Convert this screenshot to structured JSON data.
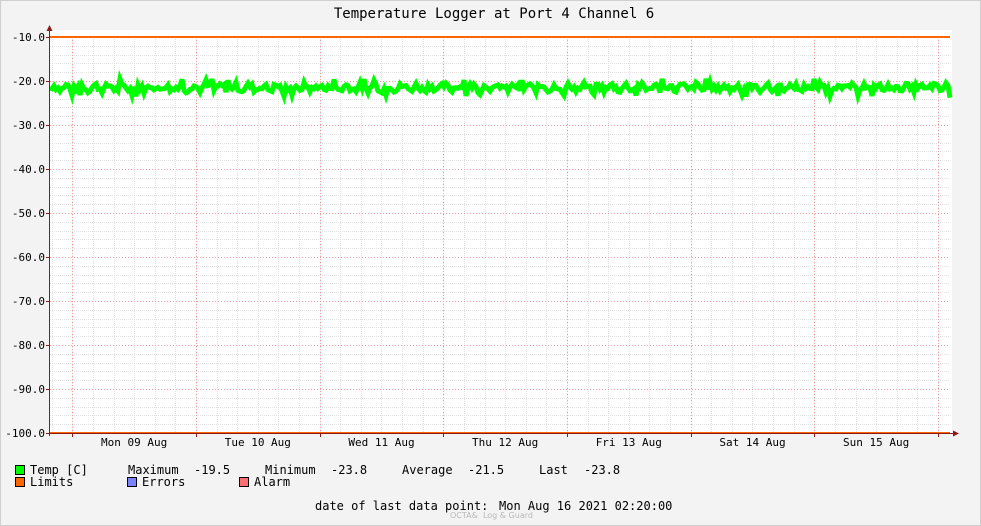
{
  "chart_data": {
    "type": "line",
    "title": "Temperature Logger at Port 4 Channel 6",
    "ylim": [
      -100,
      -10
    ],
    "y_ticks": [
      "-10.0",
      "-20.0",
      "-30.0",
      "-40.0",
      "-50.0",
      "-60.0",
      "-70.0",
      "-80.0",
      "-90.0",
      "-100.0"
    ],
    "x_ticks": [
      "Mon 09 Aug",
      "Tue 10 Aug",
      "Wed 11 Aug",
      "Thu 12 Aug",
      "Fri 13 Aug",
      "Sat 14 Aug",
      "Sun 15 Aug"
    ],
    "x_range": [
      "2021-08-08T19:40:00",
      "2021-08-16T02:20:00"
    ],
    "grid": true,
    "series": [
      {
        "name": "Temp [C]",
        "color": "#00ff00",
        "band": [
          -23.8,
          -19.5
        ],
        "mean": -21.5,
        "last": -23.8
      },
      {
        "name": "Limits",
        "color": "#ff6600",
        "values": [
          -10.0,
          -100.0
        ]
      }
    ]
  },
  "legend": {
    "temp_label": "Temp [C]",
    "max_label": "Maximum",
    "max_value": "-19.5",
    "min_label": "Minimum",
    "min_value": "-23.8",
    "avg_label": "Average",
    "avg_value": "-21.5",
    "last_label": "Last",
    "last_value": "-23.8",
    "limits_label": "Limits",
    "errors_label": "Errors",
    "alarm_label": "Alarm"
  },
  "colors": {
    "temp": "#00ff00",
    "limits": "#ff6600",
    "errors": "#7b84ff",
    "alarm": "#ff6f6f",
    "axis": "#8b1a1a"
  },
  "footer": {
    "last_point_label": "date of last data point:",
    "last_point_value": "Mon Aug 16 2021 02:20:00"
  },
  "watermark": "OCTA&  Log & Guard"
}
